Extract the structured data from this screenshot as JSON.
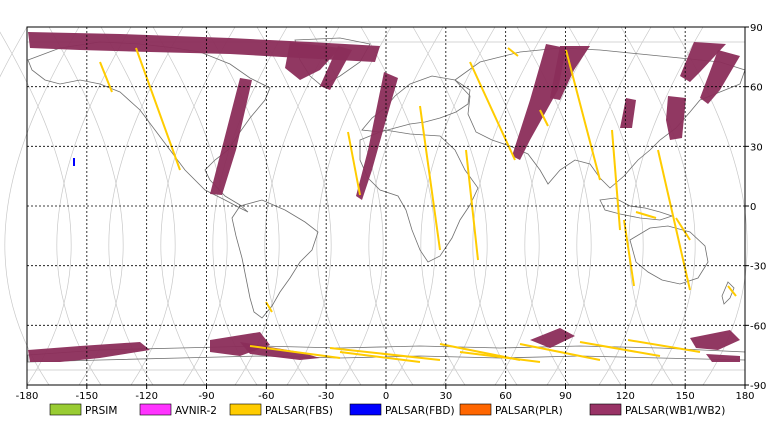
{
  "map": {
    "x_ticks": [
      "-180",
      "-150",
      "-120",
      "-90",
      "-60",
      "-30",
      "0",
      "30",
      "60",
      "90",
      "120",
      "150",
      "180"
    ],
    "y_ticks": [
      "90",
      "60",
      "30",
      "0",
      "-30",
      "-60",
      "-90"
    ],
    "legend": [
      {
        "name": "PRSIM",
        "color": "#99cc33"
      },
      {
        "name": "AVNIR-2",
        "color": "#ff33ff"
      },
      {
        "name": "PALSAR(FBS)",
        "color": "#ffcc00"
      },
      {
        "name": "PALSAR(FBD)",
        "color": "#0000ff"
      },
      {
        "name": "PALSAR(PLR)",
        "color": "#ff6600"
      },
      {
        "name": "PALSAR(WB1/WB2)",
        "color": "#993366"
      }
    ],
    "colors": {
      "wb": "#8b2d5a",
      "fbs": "#ffcc00",
      "fbd": "#0000ff",
      "coast": "#707070",
      "orbit": "#c8c8c8",
      "grid": "#000000"
    }
  }
}
